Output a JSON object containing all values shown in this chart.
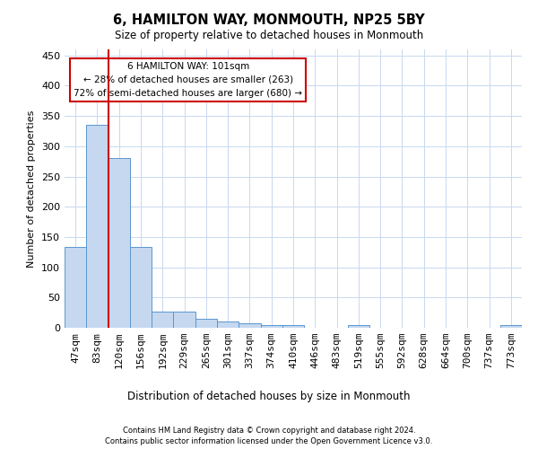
{
  "title": "6, HAMILTON WAY, MONMOUTH, NP25 5BY",
  "subtitle": "Size of property relative to detached houses in Monmouth",
  "xlabel": "Distribution of detached houses by size in Monmouth",
  "ylabel": "Number of detached properties",
  "bar_labels": [
    "47sqm",
    "83sqm",
    "120sqm",
    "156sqm",
    "192sqm",
    "229sqm",
    "265sqm",
    "301sqm",
    "337sqm",
    "374sqm",
    "410sqm",
    "446sqm",
    "483sqm",
    "519sqm",
    "555sqm",
    "592sqm",
    "628sqm",
    "664sqm",
    "700sqm",
    "737sqm",
    "773sqm"
  ],
  "bar_values": [
    134,
    335,
    280,
    133,
    26,
    26,
    15,
    11,
    7,
    5,
    4,
    0,
    0,
    4,
    0,
    0,
    0,
    0,
    0,
    0,
    4
  ],
  "bar_color": "#c5d8f0",
  "bar_edge_color": "#5a96d0",
  "vline_x": 1.5,
  "vline_color": "#cc0000",
  "annotation_text": "6 HAMILTON WAY: 101sqm\n← 28% of detached houses are smaller (263)\n72% of semi-detached houses are larger (680) →",
  "annotation_box_color": "#ffffff",
  "annotation_box_edge_color": "#cc0000",
  "ylim": [
    0,
    460
  ],
  "yticks": [
    0,
    50,
    100,
    150,
    200,
    250,
    300,
    350,
    400,
    450
  ],
  "background_color": "#ffffff",
  "grid_color": "#c8d8f0",
  "footer_line1": "Contains HM Land Registry data © Crown copyright and database right 2024.",
  "footer_line2": "Contains public sector information licensed under the Open Government Licence v3.0."
}
